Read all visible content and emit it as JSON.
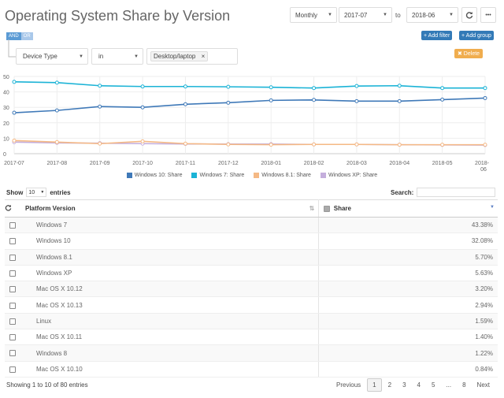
{
  "page": {
    "title": "Operating System Share by Version"
  },
  "toolbar": {
    "period": "Monthly",
    "from": "2017-07",
    "to_label": "to",
    "to": "2018-06",
    "refresh_icon": "refresh-icon",
    "more_icon": "more-icon",
    "more_label": "•••"
  },
  "filter": {
    "and_label": "AND",
    "or_label": "OR",
    "add_filter": "+ Add filter",
    "add_group": "+ Add group",
    "field": "Device Type",
    "operator": "in",
    "value": "Desktop/laptop",
    "value_remove": "×",
    "delete": "✖ Delete"
  },
  "colors": {
    "win10": "#3f79b8",
    "win7": "#1bb3d6",
    "win81": "#f5b985",
    "winxp": "#c4aedc"
  },
  "chart_data": {
    "type": "line",
    "categories": [
      "2017-07",
      "2017-08",
      "2017-09",
      "2017-10",
      "2017-11",
      "2017-12",
      "2018-01",
      "2018-02",
      "2018-03",
      "2018-04",
      "2018-05",
      "2018-06"
    ],
    "ylim": [
      0,
      50
    ],
    "yticks": [
      "0",
      "10",
      "20",
      "30",
      "40",
      "50"
    ],
    "xtick_labels": [
      "2017-07",
      "2017-08",
      "2017-09",
      "2017-10",
      "2017-11",
      "2017-12",
      "2018-01",
      "2018-02",
      "2018-03",
      "2018-04",
      "2018-05",
      "2018-"
    ],
    "xtick_last_line2": "06",
    "series": [
      {
        "name": "Windows 10: Share",
        "color": "#3f79b8",
        "values": [
          26.5,
          28,
          30.5,
          30,
          32,
          33,
          34.5,
          34.8,
          34,
          34,
          35,
          36
        ]
      },
      {
        "name": "Windows 7: Share",
        "color": "#1bb3d6",
        "values": [
          46.5,
          46,
          44,
          43.5,
          43.5,
          43.3,
          43,
          42.5,
          43.8,
          44,
          42.5,
          42.5
        ]
      },
      {
        "name": "Windows 8.1: Share",
        "color": "#f5b985",
        "values": [
          8.5,
          7.5,
          6.5,
          8,
          6.5,
          6,
          5.8,
          6,
          6,
          5.8,
          5.8,
          5.8
        ]
      },
      {
        "name": "Windows XP: Share",
        "color": "#c4aedc",
        "values": [
          7.5,
          7,
          6.8,
          6.5,
          6.3,
          6.2,
          6.2,
          6,
          6,
          5.8,
          5.7,
          5.6
        ]
      }
    ]
  },
  "legend": [
    "Windows 10: Share",
    "Windows 7: Share",
    "Windows 8.1: Share",
    "Windows XP: Share"
  ],
  "table": {
    "show_label": "Show",
    "page_size": "10",
    "entries_label": "entries",
    "search_label": "Search:",
    "headers": {
      "platform": "Platform Version",
      "share": "Share"
    },
    "sort_icon": "⇅",
    "sort_desc_icon": "▼",
    "rows": [
      {
        "platform": "Windows 7",
        "share": "43.38%"
      },
      {
        "platform": "Windows 10",
        "share": "32.08%"
      },
      {
        "platform": "Windows 8.1",
        "share": "5.70%"
      },
      {
        "platform": "Windows XP",
        "share": "5.63%"
      },
      {
        "platform": "Mac OS X 10.12",
        "share": "3.20%"
      },
      {
        "platform": "Mac OS X 10.13",
        "share": "2.94%"
      },
      {
        "platform": "Linux",
        "share": "1.59%"
      },
      {
        "platform": "Mac OS X 10.11",
        "share": "1.40%"
      },
      {
        "platform": "Windows 8",
        "share": "1.22%"
      },
      {
        "platform": "Mac OS X 10.10",
        "share": "0.84%"
      }
    ],
    "info": "Showing 1 to 10 of 80 entries"
  },
  "pagination": {
    "previous": "Previous",
    "pages": [
      "1",
      "2",
      "3",
      "4",
      "5",
      "...",
      "8"
    ],
    "next": "Next"
  }
}
